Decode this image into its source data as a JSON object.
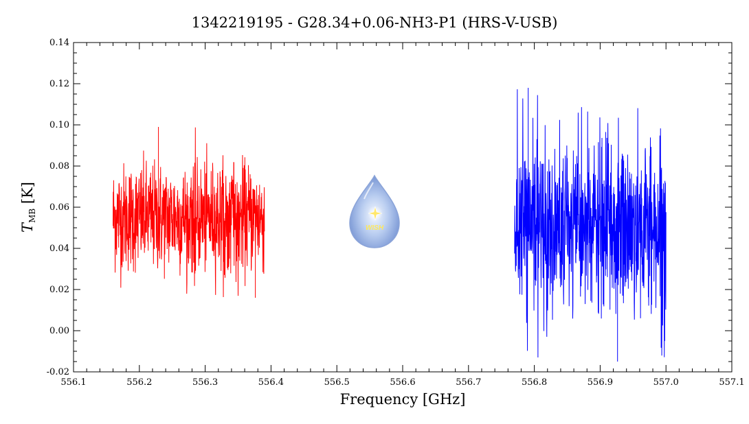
{
  "chart_data": {
    "type": "line",
    "title": "1342219195 - G28.34+0.06-NH3-P1 (HRS-V-USB)",
    "xlabel": "Frequency [GHz]",
    "ylabel_main": "T",
    "ylabel_sub": "MB",
    "ylabel_unit": "[K]",
    "xlim": [
      556.1,
      557.1
    ],
    "ylim": [
      -0.02,
      0.14
    ],
    "x_ticks": [
      "556.1",
      "556.2",
      "556.3",
      "556.4",
      "556.5",
      "556.6",
      "556.7",
      "556.8",
      "556.9",
      "557.0",
      "557.1"
    ],
    "y_ticks": [
      "-0.02",
      "0.00",
      "0.02",
      "0.04",
      "0.06",
      "0.08",
      "0.10",
      "0.12",
      "0.14"
    ],
    "grid": false,
    "series": [
      {
        "color": "#ff0000",
        "x_range": [
          556.16,
          556.39
        ],
        "baseline": 0.055,
        "min": 0.016,
        "max": 0.099,
        "samples": 720,
        "noise_sigma": 0.013
      },
      {
        "color": "#0000ff",
        "x_range": [
          556.77,
          557.0
        ],
        "baseline": 0.05,
        "min": -0.015,
        "max": 0.118,
        "samples": 720,
        "noise_sigma": 0.021
      }
    ],
    "logo_text": "WISH"
  }
}
